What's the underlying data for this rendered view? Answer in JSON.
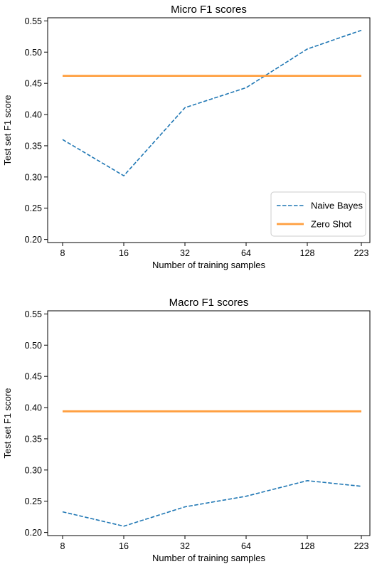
{
  "colors": {
    "naive_bayes": "#1f77b4",
    "zero_shot": "#ff9f3f"
  },
  "chart_data": [
    {
      "type": "line",
      "title": "Micro F1 scores",
      "xlabel": "Number of training samples",
      "ylabel": "Test set F1 score",
      "categories": [
        "8",
        "16",
        "32",
        "64",
        "128",
        "223"
      ],
      "ylim": [
        0.195,
        0.555
      ],
      "yticks": [
        "0.20",
        "0.25",
        "0.30",
        "0.35",
        "0.40",
        "0.45",
        "0.50",
        "0.55"
      ],
      "grid": false,
      "legend": "bottom-right",
      "series": [
        {
          "name": "Naive Bayes",
          "style": "dashed",
          "values": [
            0.36,
            0.302,
            0.411,
            0.443,
            0.505,
            0.535
          ]
        },
        {
          "name": "Zero Shot",
          "style": "solid",
          "values": [
            0.462,
            0.462,
            0.462,
            0.462,
            0.462,
            0.462
          ]
        }
      ]
    },
    {
      "type": "line",
      "title": "Macro F1 scores",
      "xlabel": "Number of training samples",
      "ylabel": "Test set F1 score",
      "categories": [
        "8",
        "16",
        "32",
        "64",
        "128",
        "223"
      ],
      "ylim": [
        0.195,
        0.555
      ],
      "yticks": [
        "0.20",
        "0.25",
        "0.30",
        "0.35",
        "0.40",
        "0.45",
        "0.50",
        "0.55"
      ],
      "grid": false,
      "legend": "none",
      "series": [
        {
          "name": "Naive Bayes",
          "style": "dashed",
          "values": [
            0.233,
            0.21,
            0.241,
            0.258,
            0.283,
            0.274
          ]
        },
        {
          "name": "Zero Shot",
          "style": "solid",
          "values": [
            0.394,
            0.394,
            0.394,
            0.394,
            0.394,
            0.394
          ]
        }
      ]
    }
  ]
}
